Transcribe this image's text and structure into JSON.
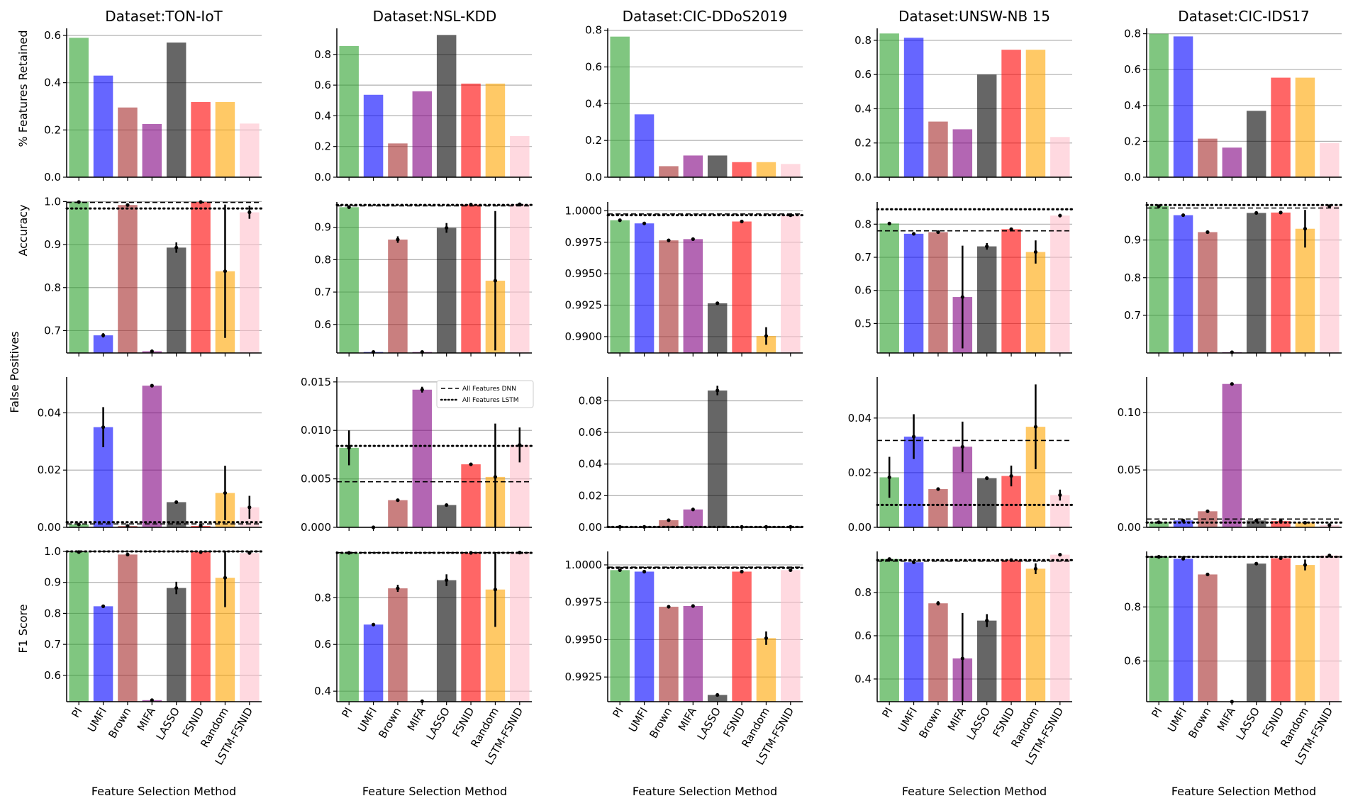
{
  "figure": {
    "methods": [
      "PI",
      "UMFI",
      "Brown",
      "MIFA",
      "LASSO",
      "FSNID",
      "Random",
      "LSTM-FSNID"
    ],
    "colors": {
      "PI": "#2ca02c",
      "UMFI": "#0000ff",
      "Brown": "#a52a2a",
      "MIFA": "#800080",
      "LASSO": "#000000",
      "FSNID": "#ff0000",
      "Random": "#ffa500",
      "LSTM-FSNID": "#ffc0cb"
    },
    "bar_opacity": 0.6,
    "xlabel": "Feature Selection Method",
    "row_ylabels": [
      "% Features Retained",
      "Accuracy",
      "False Positives",
      "F1 Score"
    ],
    "legend": {
      "dnn": "All Features DNN",
      "lstm": "All Features LSTM",
      "placement": "top-right of NSL-KDD False Positives panel"
    }
  },
  "chart_data": [
    {
      "type": "bar",
      "dataset": "Dataset:TON-IoT",
      "metric": "% Features Retained",
      "ylim": [
        0,
        0.63
      ],
      "yticks": [
        0.0,
        0.2,
        0.4,
        0.6
      ],
      "tick_labels": [
        "0.0",
        "0.2",
        "0.4",
        "0.6"
      ],
      "values": [
        0.59,
        0.43,
        0.295,
        0.225,
        0.57,
        0.318,
        0.318,
        0.227
      ],
      "errors": [
        0,
        0,
        0,
        0,
        0,
        0,
        0,
        0
      ],
      "dnn": null,
      "lstm": null
    },
    {
      "type": "bar",
      "dataset": "Dataset:NSL-KDD",
      "metric": "% Features Retained",
      "ylim": [
        0,
        0.97
      ],
      "yticks": [
        0.0,
        0.2,
        0.4,
        0.6,
        0.8
      ],
      "tick_labels": [
        "0.0",
        "0.2",
        "0.4",
        "0.6",
        "0.8"
      ],
      "values": [
        0.855,
        0.537,
        0.22,
        0.56,
        0.927,
        0.61,
        0.61,
        0.268
      ],
      "errors": [
        0,
        0,
        0,
        0,
        0,
        0,
        0,
        0
      ],
      "dnn": null,
      "lstm": null
    },
    {
      "type": "bar",
      "dataset": "Dataset:CIC-DDoS2019",
      "metric": "% Features Retained",
      "ylim": [
        0,
        0.81
      ],
      "yticks": [
        0.0,
        0.2,
        0.4,
        0.6,
        0.8
      ],
      "tick_labels": [
        "0.0",
        "0.2",
        "0.4",
        "0.6",
        "0.8"
      ],
      "values": [
        0.765,
        0.342,
        0.06,
        0.118,
        0.118,
        0.082,
        0.082,
        0.072
      ],
      "errors": [
        0,
        0,
        0,
        0,
        0,
        0,
        0,
        0
      ],
      "dnn": null,
      "lstm": null
    },
    {
      "type": "bar",
      "dataset": "Dataset:UNSW-NB 15",
      "metric": "% Features Retained",
      "ylim": [
        0,
        0.87
      ],
      "yticks": [
        0.0,
        0.2,
        0.4,
        0.6,
        0.8
      ],
      "tick_labels": [
        "0.0",
        "0.2",
        "0.4",
        "0.6",
        "0.8"
      ],
      "values": [
        0.84,
        0.815,
        0.325,
        0.28,
        0.6,
        0.745,
        0.745,
        0.235
      ],
      "errors": [
        0,
        0,
        0,
        0,
        0,
        0,
        0,
        0
      ],
      "dnn": null,
      "lstm": null
    },
    {
      "type": "bar",
      "dataset": "Dataset:CIC-IDS17",
      "metric": "% Features Retained",
      "ylim": [
        0,
        0.83
      ],
      "yticks": [
        0.0,
        0.2,
        0.4,
        0.6,
        0.8
      ],
      "tick_labels": [
        "0.0",
        "0.2",
        "0.4",
        "0.6",
        "0.8"
      ],
      "values": [
        0.8,
        0.785,
        0.215,
        0.165,
        0.37,
        0.555,
        0.555,
        0.19
      ],
      "errors": [
        0,
        0,
        0,
        0,
        0,
        0,
        0,
        0
      ],
      "dnn": null,
      "lstm": null
    },
    {
      "type": "bar",
      "dataset": "Dataset:TON-IoT",
      "metric": "Accuracy",
      "ylim": [
        0.648,
        0.999
      ],
      "yticks": [
        0.7,
        0.8,
        0.9,
        1.0
      ],
      "tick_labels": [
        "0.7",
        "0.8",
        "0.9",
        "1.0"
      ],
      "values": [
        0.999,
        0.689,
        0.992,
        0.652,
        0.893,
        0.999,
        0.838,
        0.975
      ],
      "errors": [
        0,
        0.005,
        0,
        0,
        0.012,
        0,
        0.155,
        0.015
      ],
      "dnn": 0.998,
      "lstm": 0.984
    },
    {
      "type": "bar",
      "dataset": "Dataset:NSL-KDD",
      "metric": "Accuracy",
      "ylim": [
        0.512,
        0.978
      ],
      "yticks": [
        0.6,
        0.7,
        0.8,
        0.9
      ],
      "tick_labels": [
        "0.6",
        "0.7",
        "0.8",
        "0.9"
      ],
      "values": [
        0.962,
        0.515,
        0.862,
        0.515,
        0.898,
        0.97,
        0.735,
        0.971
      ],
      "errors": [
        0,
        0,
        0.01,
        0,
        0.015,
        0,
        0.215,
        0
      ],
      "dnn": 0.966,
      "lstm": 0.969
    },
    {
      "type": "bar",
      "dataset": "Dataset:CIC-DDoS2019",
      "metric": "Accuracy",
      "ylim": [
        0.9887,
        1.0007
      ],
      "yticks": [
        0.99,
        0.9925,
        0.995,
        0.9975,
        1.0
      ],
      "tick_labels": [
        "0.9900",
        "0.9925",
        "0.9950",
        "0.9975",
        "1.0000"
      ],
      "values": [
        0.99925,
        0.999,
        0.99765,
        0.99775,
        0.99265,
        0.99915,
        0.99005,
        0.99965
      ],
      "errors": [
        0,
        0,
        0,
        5e-05,
        0,
        0,
        0.0007,
        5e-05
      ],
      "dnn": 0.99975,
      "lstm": 0.99965
    },
    {
      "type": "bar",
      "dataset": "Dataset:UNSW-NB 15",
      "metric": "Accuracy",
      "ylim": [
        0.411,
        0.867
      ],
      "yticks": [
        0.5,
        0.6,
        0.7,
        0.8
      ],
      "tick_labels": [
        "0.5",
        "0.6",
        "0.7",
        "0.8"
      ],
      "values": [
        0.802,
        0.771,
        0.776,
        0.58,
        0.733,
        0.785,
        0.716,
        0.826
      ],
      "errors": [
        0,
        0,
        0.003,
        0.155,
        0.01,
        0.003,
        0.035,
        0
      ],
      "dnn": 0.78,
      "lstm": 0.845
    },
    {
      "type": "bar",
      "dataset": "Dataset:CIC-IDS17",
      "metric": "Accuracy",
      "ylim": [
        0.6,
        1.001
      ],
      "yticks": [
        0.7,
        0.8,
        0.9
      ],
      "tick_labels": [
        "0.7",
        "0.8",
        "0.9"
      ],
      "values": [
        0.99,
        0.966,
        0.921,
        0.602,
        0.972,
        0.973,
        0.93,
        0.99
      ],
      "errors": [
        0,
        0,
        0.003,
        0,
        0,
        0.003,
        0.05,
        0
      ],
      "dnn": 0.985,
      "lstm": 0.993
    },
    {
      "type": "bar",
      "dataset": "Dataset:TON-IoT",
      "metric": "False Positives",
      "ylim": [
        0,
        0.0525
      ],
      "yticks": [
        0.0,
        0.02,
        0.04
      ],
      "tick_labels": [
        "0.00",
        "0.02",
        "0.04"
      ],
      "values": [
        0.001,
        0.035,
        0.0005,
        0.0495,
        0.0088,
        0.0005,
        0.012,
        0.007
      ],
      "errors": [
        0,
        0.007,
        0,
        0,
        0.0005,
        0,
        0.0095,
        0.004
      ],
      "dnn": 0.0012,
      "lstm": 0.0018
    },
    {
      "type": "bar",
      "dataset": "Dataset:NSL-KDD",
      "metric": "False Positives",
      "ylim": [
        0,
        0.0155
      ],
      "yticks": [
        0.0,
        0.005,
        0.01,
        0.015
      ],
      "tick_labels": [
        "0.000",
        "0.005",
        "0.010",
        "0.015"
      ],
      "values": [
        0.0082,
        0,
        0.0028,
        0.0142,
        0.0023,
        0.0065,
        0.0052,
        0.0085
      ],
      "errors": [
        0.0018,
        0,
        0,
        0.0003,
        0.0001,
        0,
        0.0055,
        0.0018
      ],
      "dnn": 0.0047,
      "lstm": 0.0084
    },
    {
      "type": "bar",
      "dataset": "Dataset:CIC-DDoS2019",
      "metric": "False Positives",
      "ylim": [
        0,
        0.095
      ],
      "yticks": [
        0.0,
        0.02,
        0.04,
        0.06,
        0.08
      ],
      "tick_labels": [
        "0.00",
        "0.02",
        "0.04",
        "0.06",
        "0.08"
      ],
      "values": [
        0.0003,
        0.0003,
        0.0045,
        0.0113,
        0.0865,
        0.0003,
        0.0003,
        0.0003
      ],
      "errors": [
        0,
        0,
        0,
        0,
        0.003,
        0,
        0,
        0
      ],
      "dnn": 0.0003,
      "lstm": 0.0003
    },
    {
      "type": "bar",
      "dataset": "Dataset:UNSW-NB 15",
      "metric": "False Positives",
      "ylim": [
        0,
        0.055
      ],
      "yticks": [
        0.0,
        0.02,
        0.04
      ],
      "tick_labels": [
        "0.00",
        "0.02",
        "0.04"
      ],
      "values": [
        0.0183,
        0.0332,
        0.014,
        0.0295,
        0.018,
        0.0188,
        0.0368,
        0.0118
      ],
      "errors": [
        0.0075,
        0.0082,
        0,
        0.0092,
        0,
        0.0038,
        0.0155,
        0.002
      ],
      "dnn": 0.0318,
      "lstm": 0.0082
    },
    {
      "type": "bar",
      "dataset": "Dataset:CIC-IDS17",
      "metric": "False Positives",
      "ylim": [
        0,
        0.131
      ],
      "yticks": [
        0.0,
        0.05,
        0.1
      ],
      "tick_labels": [
        "0.00",
        "0.05",
        "0.10"
      ],
      "values": [
        0.0045,
        0.006,
        0.014,
        0.125,
        0.006,
        0.0055,
        0.004,
        0.002
      ],
      "errors": [
        0,
        0,
        0,
        0,
        0,
        0,
        0,
        0
      ],
      "dnn": 0.0072,
      "lstm": 0.0042
    },
    {
      "type": "bar",
      "dataset": "Dataset:TON-IoT",
      "metric": "F1 Score",
      "ylim": [
        0.515,
        1.0
      ],
      "yticks": [
        0.6,
        0.7,
        0.8,
        0.9,
        1.0
      ],
      "tick_labels": [
        "0.6",
        "0.7",
        "0.8",
        "0.9",
        "1.0"
      ],
      "values": [
        0.998,
        0.823,
        0.99,
        0.52,
        0.882,
        0.998,
        0.915,
        0.995
      ],
      "errors": [
        0,
        0,
        0,
        0,
        0.02,
        0,
        0.095,
        0
      ],
      "dnn": 1.0,
      "lstm": 1.0
    },
    {
      "type": "bar",
      "dataset": "Dataset:NSL-KDD",
      "metric": "F1 Score",
      "ylim": [
        0.355,
        0.998
      ],
      "yticks": [
        0.4,
        0.6,
        0.8
      ],
      "tick_labels": [
        "0.4",
        "0.6",
        "0.8"
      ],
      "values": [
        0.992,
        0.685,
        0.84,
        0.357,
        0.875,
        0.992,
        0.835,
        0.993
      ],
      "errors": [
        0,
        0,
        0.015,
        0,
        0.025,
        0,
        0.16,
        0
      ],
      "dnn": 0.993,
      "lstm": 0.992
    },
    {
      "type": "bar",
      "dataset": "Dataset:CIC-DDoS2019",
      "metric": "F1 Score",
      "ylim": [
        0.99085,
        1.0009
      ],
      "yticks": [
        0.9925,
        0.995,
        0.9975,
        1.0
      ],
      "tick_labels": [
        "0.9925",
        "0.9950",
        "0.9975",
        "1.0000"
      ],
      "values": [
        0.99965,
        0.99955,
        0.9972,
        0.99725,
        0.9913,
        0.99955,
        0.9951,
        0.99965
      ],
      "errors": [
        0,
        0,
        0,
        0.0001,
        0.0001,
        0,
        0.00045,
        0
      ],
      "dnn": 0.99985,
      "lstm": 0.9998
    },
    {
      "type": "bar",
      "dataset": "Dataset:UNSW-NB 15",
      "metric": "F1 Score",
      "ylim": [
        0.295,
        0.99
      ],
      "yticks": [
        0.4,
        0.6,
        0.8
      ],
      "tick_labels": [
        "0.4",
        "0.6",
        "0.8"
      ],
      "values": [
        0.955,
        0.94,
        0.75,
        0.495,
        0.67,
        0.95,
        0.91,
        0.975
      ],
      "errors": [
        0,
        0,
        0.01,
        0.21,
        0.03,
        0,
        0.025,
        0
      ],
      "dnn": 0.945,
      "lstm": 0.95
    },
    {
      "type": "bar",
      "dataset": "Dataset:CIC-IDS17",
      "metric": "F1 Score",
      "ylim": [
        0.45,
        1.005
      ],
      "yticks": [
        0.6,
        0.8
      ],
      "tick_labels": [
        "0.6",
        "0.8"
      ],
      "values": [
        0.985,
        0.978,
        0.92,
        0.45,
        0.96,
        0.98,
        0.955,
        0.99
      ],
      "errors": [
        0,
        0,
        0,
        0,
        0,
        0,
        0.02,
        0
      ],
      "dnn": 0.985,
      "lstm": 0.985
    }
  ]
}
